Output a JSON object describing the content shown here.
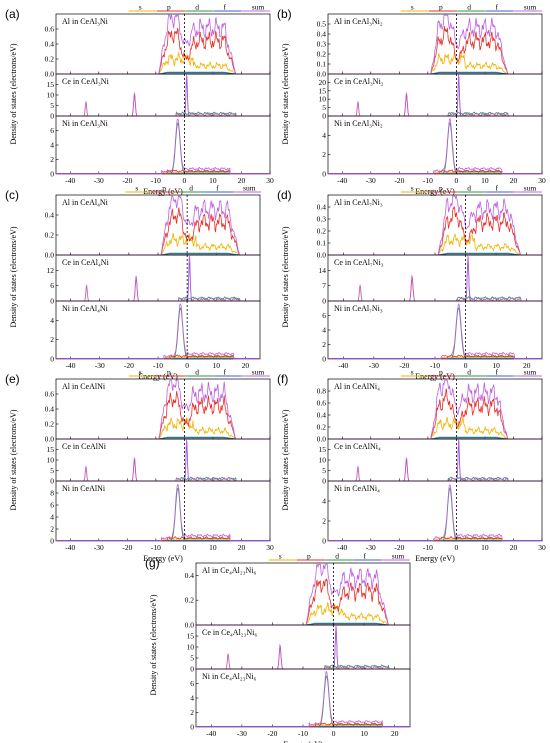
{
  "colors": {
    "s": "#f0b400",
    "p": "#e8302a",
    "d": "#2a9a46",
    "f": "#3a5fd0",
    "sum": "#c060e0",
    "axis": "#000000"
  },
  "chart_data": [
    {
      "type": "line",
      "panel": "(a)",
      "legend": [
        "s",
        "p",
        "d",
        "f",
        "sum"
      ],
      "xlabel": "Energy (eV)",
      "ylabel": "Density of states (electrons/eV)",
      "xlim": [
        -45,
        30
      ],
      "xticks": [
        -40,
        -30,
        -20,
        -10,
        0,
        10,
        20,
        30
      ],
      "fermi": 0,
      "subplots": [
        {
          "label": "Al in CeAl₃Ni",
          "ylim": [
            0,
            0.8
          ],
          "yticks": [
            "0.0",
            "0.2",
            "0.4",
            "0.6",
            "0.8"
          ]
        },
        {
          "label": "Ce in CeAl₃Ni",
          "ylim": [
            0,
            20
          ],
          "yticks": [
            "0",
            "5",
            "10",
            "15",
            "20"
          ]
        },
        {
          "label": "Ni in CeAl₃Ni",
          "ylim": [
            0,
            8
          ],
          "yticks": [
            "0",
            "2",
            "4",
            "6",
            "8"
          ]
        }
      ]
    },
    {
      "type": "line",
      "panel": "(b)",
      "legend": [
        "s",
        "p",
        "d",
        "f",
        "sum"
      ],
      "xlabel": "Energy (eV)",
      "ylabel": "Density of states (electrons/eV)",
      "xlim": [
        -45,
        30
      ],
      "xticks": [
        -40,
        -30,
        -20,
        -10,
        0,
        10,
        20,
        30
      ],
      "fermi": 0,
      "subplots": [
        {
          "label": "Al in CeAl₃Ni₂",
          "ylim": [
            0,
            0.6
          ],
          "yticks": [
            "0.0",
            "0.1",
            "0.2",
            "0.3",
            "0.4",
            "0.5",
            "0.6"
          ]
        },
        {
          "label": "Ce in CeAl₃Ni₂",
          "ylim": [
            0,
            25
          ],
          "yticks": [
            "0",
            "5",
            "10",
            "15",
            "20",
            "25"
          ]
        },
        {
          "label": "Ni in CeAl₃Ni₂",
          "ylim": [
            0,
            6
          ],
          "yticks": [
            "0",
            "2",
            "4",
            "6"
          ]
        }
      ]
    },
    {
      "type": "line",
      "panel": "(c)",
      "legend": [
        "s",
        "p",
        "d",
        "f",
        "sum"
      ],
      "xlabel": "Energy (eV)",
      "ylabel": "Density of states (electrons/eV)",
      "xlim": [
        -45,
        25
      ],
      "xticks": [
        -40,
        -30,
        -20,
        -10,
        0,
        10,
        20
      ],
      "fermi": 0,
      "subplots": [
        {
          "label": "Al in CeAl₄Ni",
          "ylim": [
            0,
            0.6
          ],
          "yticks": [
            "0.0",
            "0.2",
            "0.4",
            "0.6"
          ]
        },
        {
          "label": "Ce in CeAl₄Ni",
          "ylim": [
            0,
            18
          ],
          "yticks": [
            "0",
            "6",
            "12",
            "18"
          ]
        },
        {
          "label": "Ni in CeAl₄Ni",
          "ylim": [
            0,
            6
          ],
          "yticks": [
            "0",
            "2",
            "4",
            "6"
          ]
        }
      ]
    },
    {
      "type": "line",
      "panel": "(d)",
      "legend": [
        "s",
        "p",
        "d",
        "f",
        "sum"
      ],
      "xlabel": "Energy (eV)",
      "ylabel": "Density of states (electrons/eV)",
      "xlim": [
        -45,
        25
      ],
      "xticks": [
        -40,
        -30,
        -20,
        -10,
        0,
        10,
        20
      ],
      "fermi": 0,
      "subplots": [
        {
          "label": "Al in CeAl₇Ni₃",
          "ylim": [
            0,
            0.5
          ],
          "yticks": [
            "0.0",
            "0.1",
            "0.2",
            "0.3",
            "0.4",
            "0.5"
          ]
        },
        {
          "label": "Ce in CeAl₇Ni₃",
          "ylim": [
            0,
            21
          ],
          "yticks": [
            "0",
            "7",
            "14",
            "21"
          ]
        },
        {
          "label": "Ni in CeAl₇Ni₃",
          "ylim": [
            0,
            8
          ],
          "yticks": [
            "0",
            "2",
            "4",
            "6",
            "8"
          ]
        }
      ]
    },
    {
      "type": "line",
      "panel": "(e)",
      "legend": [
        "s",
        "p",
        "d",
        "f",
        "sum"
      ],
      "xlabel": "Energy (eV)",
      "ylabel": "Density of states (electrons/eV)",
      "xlim": [
        -45,
        30
      ],
      "xticks": [
        -40,
        -30,
        -20,
        -10,
        0,
        10,
        20,
        30
      ],
      "fermi": 0,
      "subplots": [
        {
          "label": "Al in CeAlNi",
          "ylim": [
            0,
            0.8
          ],
          "yticks": [
            "0.0",
            "0.2",
            "0.4",
            "0.6",
            "0.8"
          ]
        },
        {
          "label": "Ce in CeAlNi",
          "ylim": [
            0,
            20
          ],
          "yticks": [
            "0",
            "5",
            "10",
            "15",
            "20"
          ]
        },
        {
          "label": "Ni in CeAlNi",
          "ylim": [
            0,
            10
          ],
          "yticks": [
            "0",
            "2",
            "4",
            "6",
            "8",
            "10"
          ]
        }
      ]
    },
    {
      "type": "line",
      "panel": "(f)",
      "legend": [
        "s",
        "p",
        "d",
        "f",
        "sum"
      ],
      "xlabel": "Energy (eV)",
      "ylabel": "Density of states (electrons/eV)",
      "xlim": [
        -45,
        30
      ],
      "xticks": [
        -40,
        -30,
        -20,
        -10,
        0,
        10,
        20,
        30
      ],
      "fermi": 0,
      "subplots": [
        {
          "label": "Al in CeAlNi₄",
          "ylim": [
            0,
            1.0
          ],
          "yticks": [
            "0.0",
            "0.2",
            "0.4",
            "0.6",
            "0.8",
            "1.0"
          ]
        },
        {
          "label": "Ce in CeAlNi₄",
          "ylim": [
            0,
            20
          ],
          "yticks": [
            "0",
            "5",
            "10",
            "15",
            "20"
          ]
        },
        {
          "label": "Ni in CeAlNi₄",
          "ylim": [
            0,
            6
          ],
          "yticks": [
            "0",
            "2",
            "4",
            "6"
          ]
        }
      ]
    },
    {
      "type": "line",
      "panel": "(g)",
      "legend": [
        "s",
        "p",
        "d",
        "f",
        "sum"
      ],
      "xlabel": "Energy (eV)",
      "ylabel": "Density of states (electrons/eV)",
      "xlim": [
        -45,
        25
      ],
      "xticks": [
        -40,
        -30,
        -20,
        -10,
        0,
        10,
        20
      ],
      "fermi": 0,
      "subplots": [
        {
          "label": "Al in Ce₄Al₂₃Ni₆",
          "ylim": [
            0,
            0.5
          ],
          "yticks": [
            "0.0",
            "0.2",
            "0.4"
          ]
        },
        {
          "label": "Ce in Ce₄Al₂₃Ni₆",
          "ylim": [
            0,
            20
          ],
          "yticks": [
            "0",
            "5",
            "10",
            "15",
            "20"
          ]
        },
        {
          "label": "Ni in Ce₄Al₂₃Ni₆",
          "ylim": [
            0,
            8
          ],
          "yticks": [
            "0",
            "2",
            "4",
            "6",
            "8"
          ]
        }
      ]
    }
  ]
}
